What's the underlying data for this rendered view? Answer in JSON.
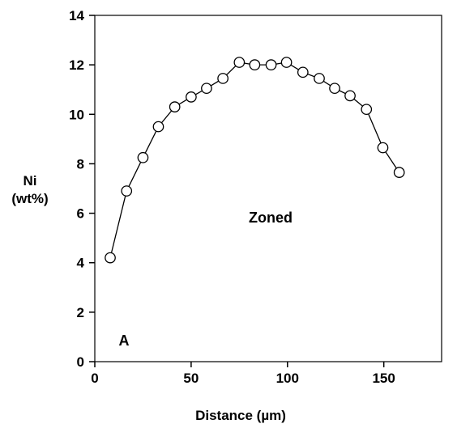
{
  "chart_data": {
    "type": "scatter",
    "xlabel": "Distance (µm)",
    "ylabel_lines": [
      "Ni",
      "(wt%)"
    ],
    "xlim": [
      0,
      180
    ],
    "ylim": [
      0,
      14
    ],
    "x_ticks": [
      0,
      50,
      100,
      150
    ],
    "y_ticks": [
      0,
      2,
      4,
      6,
      8,
      10,
      12,
      14
    ],
    "grid": false,
    "legend": "none",
    "annotations": {
      "zoned": "Zoned",
      "panel": "A"
    },
    "series": [
      {
        "marker": "open-circle",
        "line": true,
        "color": "#000000",
        "points": [
          {
            "x": 8,
            "y": 4.2
          },
          {
            "x": 16.5,
            "y": 6.9
          },
          {
            "x": 25,
            "y": 8.25
          },
          {
            "x": 33,
            "y": 9.5
          },
          {
            "x": 41.5,
            "y": 10.3
          },
          {
            "x": 50,
            "y": 10.7
          },
          {
            "x": 58,
            "y": 11.05
          },
          {
            "x": 66.5,
            "y": 11.45
          },
          {
            "x": 75,
            "y": 12.1
          },
          {
            "x": 83,
            "y": 12.0
          },
          {
            "x": 91.5,
            "y": 12.0
          },
          {
            "x": 99.5,
            "y": 12.1
          },
          {
            "x": 108,
            "y": 11.7
          },
          {
            "x": 116.5,
            "y": 11.45
          },
          {
            "x": 124.5,
            "y": 11.05
          },
          {
            "x": 132.5,
            "y": 10.75
          },
          {
            "x": 141,
            "y": 10.2
          },
          {
            "x": 149.5,
            "y": 8.65
          },
          {
            "x": 158,
            "y": 7.65
          }
        ]
      }
    ]
  }
}
